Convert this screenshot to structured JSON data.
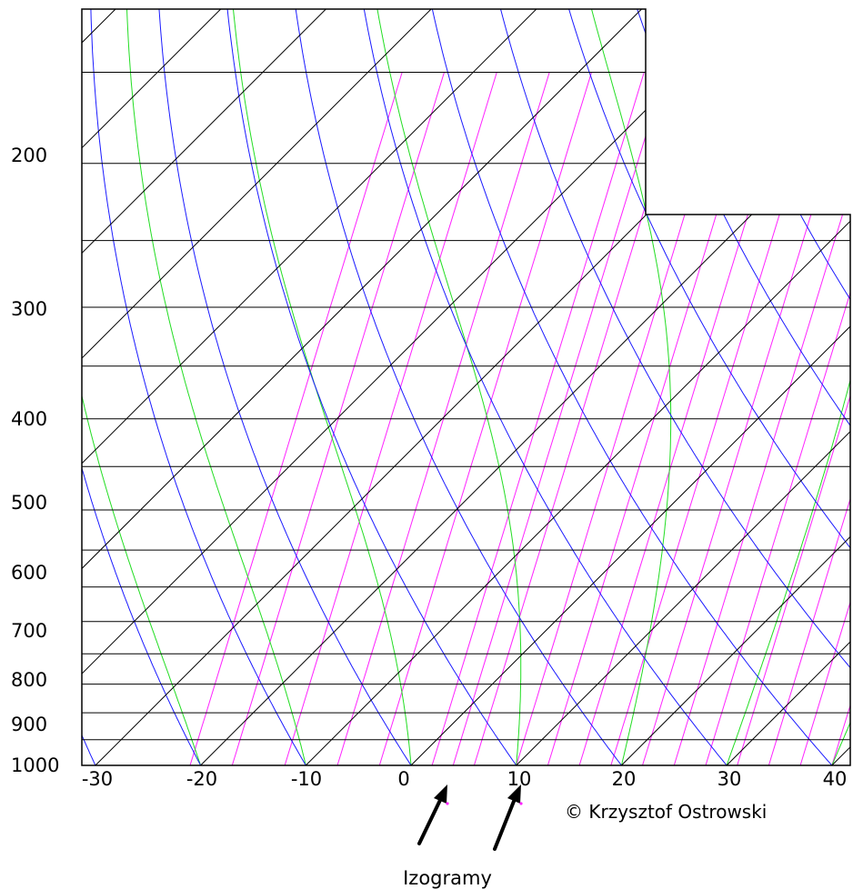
{
  "diagram": {
    "type": "skew-t-log-p",
    "pressure_labels": [
      "200",
      "300",
      "400",
      "500",
      "600",
      "700",
      "800",
      "900",
      "1000"
    ],
    "temperature_labels": [
      "-30",
      "-20",
      "-10",
      "0",
      "10",
      "20",
      "30",
      "40"
    ],
    "caption": "Izogramy",
    "credit": "© Krzysztof Ostrowski",
    "colors": {
      "isobar": "#000000",
      "isotherm": "#000000",
      "dry_adiabat": "#1a1aff",
      "moist_adiabat": "#22dd22",
      "mixing_ratio": "#ff22ff",
      "arrow": "#000000"
    },
    "isobars_hpa": [
      150,
      200,
      250,
      300,
      350,
      400,
      450,
      500,
      550,
      600,
      650,
      700,
      750,
      800,
      850,
      900,
      950,
      1000
    ],
    "isotherms_c": [
      -130,
      -120,
      -110,
      -100,
      -90,
      -80,
      -70,
      -60,
      -50,
      -40,
      -30,
      -20,
      -10,
      0,
      10,
      20,
      30,
      40
    ],
    "dry_adiabats_theta_c": [
      -30,
      -20,
      -10,
      0,
      10,
      20,
      30,
      40,
      50,
      60,
      70,
      80,
      90
    ],
    "moist_adiabats_c": [
      -20,
      -10,
      0,
      10,
      20,
      30,
      40
    ],
    "mixing_ratio_lines_c": [
      -21,
      -17,
      -12,
      -7,
      -3,
      2,
      4,
      6,
      10,
      13,
      16,
      19,
      22,
      25,
      28,
      31,
      34,
      37,
      40
    ]
  }
}
